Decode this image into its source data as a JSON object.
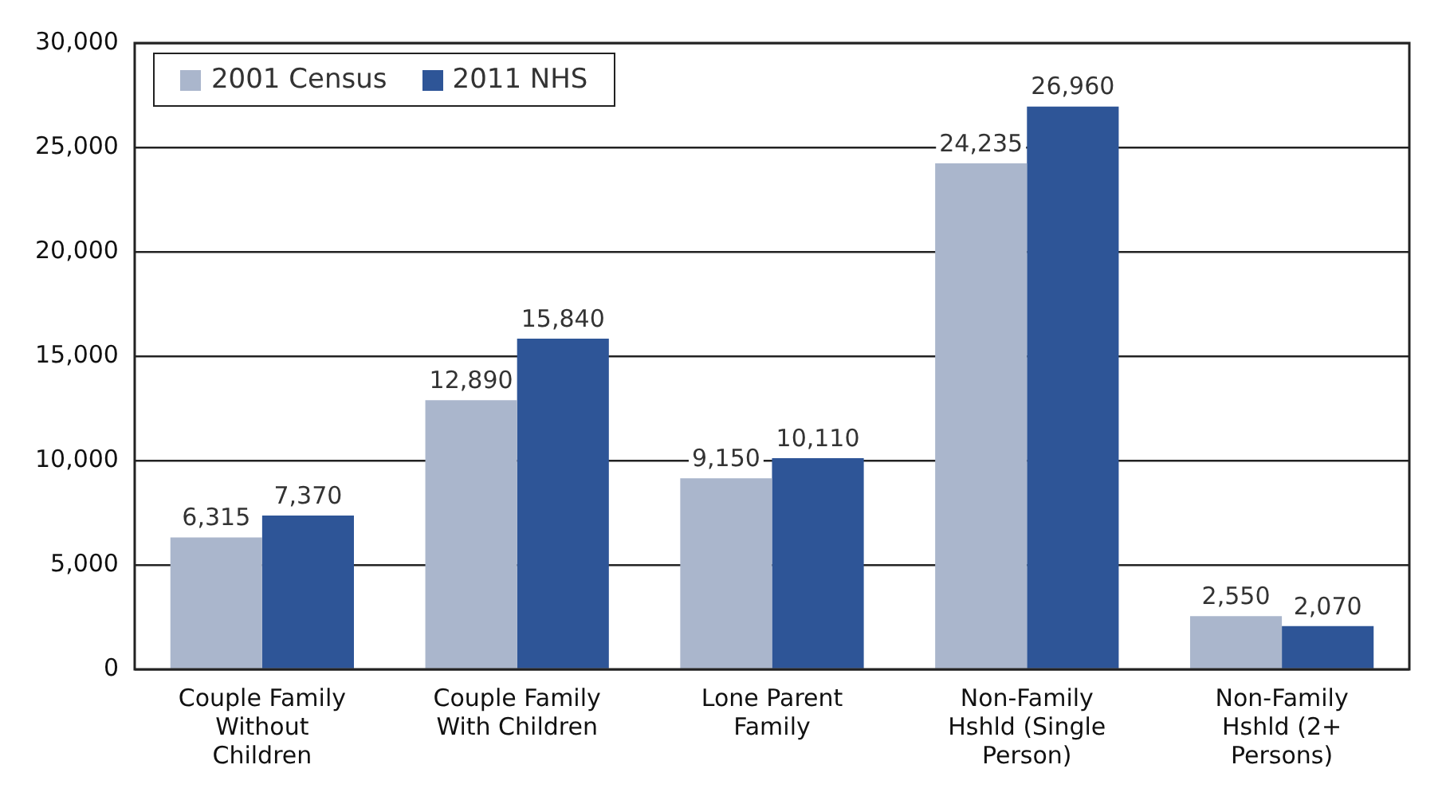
{
  "chart_data": {
    "type": "bar",
    "categories": [
      "Couple Family\nWithout\nChildren",
      "Couple Family\nWith Children",
      "Lone Parent\nFamily",
      "Non-Family\nHshld (Single\nPerson)",
      "Non-Family\nHshld (2+\nPersons)"
    ],
    "series": [
      {
        "name": "2001 Census",
        "color": "#aab6cc",
        "values": [
          6315,
          12890,
          9150,
          24235,
          2550
        ],
        "value_labels": [
          "6,315",
          "12,890",
          "9,150",
          "24,235",
          "2,550"
        ]
      },
      {
        "name": "2011 NHS",
        "color": "#2e5597",
        "values": [
          7370,
          15840,
          10110,
          26960,
          2070
        ],
        "value_labels": [
          "7,370",
          "15,840",
          "10,110",
          "26,960",
          "2,070"
        ]
      }
    ],
    "ylim": [
      0,
      30000
    ],
    "yticks": [
      {
        "value": 0,
        "label": "0"
      },
      {
        "value": 5000,
        "label": "5,000"
      },
      {
        "value": 10000,
        "label": "10,000"
      },
      {
        "value": 15000,
        "label": "15,000"
      },
      {
        "value": 20000,
        "label": "20,000"
      },
      {
        "value": 25000,
        "label": "25,000"
      },
      {
        "value": 30000,
        "label": "30,000"
      }
    ],
    "grid": "y",
    "legend": "top left"
  }
}
